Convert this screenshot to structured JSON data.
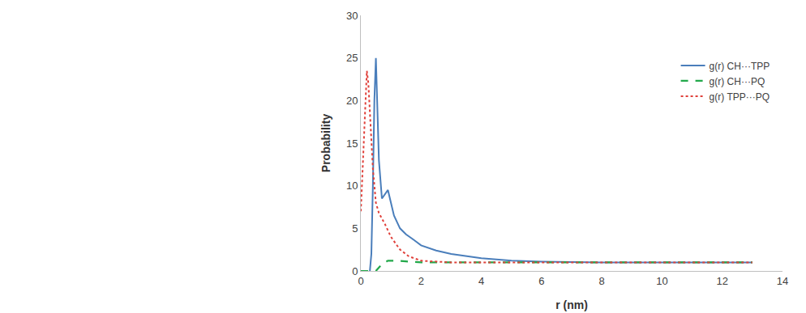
{
  "chart_data": {
    "type": "line",
    "x_label": "r (nm)",
    "y_label": "Probability",
    "xlim": [
      0,
      14
    ],
    "xticks": [
      0,
      2,
      4,
      6,
      8,
      10,
      12,
      14
    ],
    "ylim": [
      0,
      30
    ],
    "yticks": [
      0,
      5,
      10,
      15,
      20,
      25,
      30
    ],
    "grid": false,
    "legend": "upper right",
    "series": [
      {
        "name": "g(r) CH···TPP",
        "color": "#4a7ebb",
        "line_style": "solid",
        "x": [
          0.3,
          0.35,
          0.4,
          0.45,
          0.5,
          0.55,
          0.6,
          0.7,
          0.8,
          0.9,
          1.0,
          1.1,
          1.3,
          1.5,
          1.7,
          2.0,
          2.5,
          3,
          4,
          5,
          6,
          8,
          10,
          13
        ],
        "values": [
          0,
          2,
          10,
          20,
          25,
          20,
          13,
          8.5,
          9,
          9.5,
          8,
          6.5,
          5,
          4.3,
          3.8,
          3,
          2.4,
          2,
          1.5,
          1.2,
          1.1,
          1.0,
          1.0,
          1.0
        ]
      },
      {
        "name": "g(r) CH···PQ",
        "color": "#22a84a",
        "line_style": "dashed",
        "x": [
          0,
          0.5,
          0.7,
          0.9,
          1.2,
          1.6,
          2,
          4,
          8,
          13
        ],
        "values": [
          0,
          0,
          0.8,
          1.2,
          1.2,
          1.1,
          1.0,
          1.0,
          1.0,
          1.0
        ]
      },
      {
        "name": "g(r) TPP···PQ",
        "color": "#e0403a",
        "line_style": "dotted",
        "x": [
          0,
          0.05,
          0.12,
          0.2,
          0.25,
          0.3,
          0.4,
          0.5,
          0.6,
          0.8,
          1.0,
          1.3,
          1.6,
          2.0,
          3,
          5,
          8,
          13
        ],
        "values": [
          7,
          11,
          18,
          23.5,
          22,
          19,
          12,
          8,
          6.8,
          5.5,
          4,
          2.5,
          1.7,
          1.2,
          1.0,
          1.0,
          1.0,
          1.0
        ]
      }
    ]
  }
}
